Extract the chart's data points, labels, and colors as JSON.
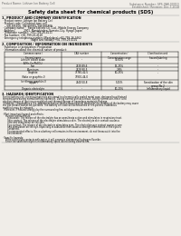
{
  "bg_color": "#f0ede8",
  "header_left": "Product Name: Lithium Ion Battery Cell",
  "header_right_line1": "Substance Number: SPS-0AR-00010",
  "header_right_line2": "Established / Revision: Dec.7,2018",
  "title": "Safety data sheet for chemical products (SDS)",
  "section1_title": "1. PRODUCT AND COMPANY IDENTIFICATION",
  "section1_lines": [
    "· Product name: Lithium Ion Battery Cell",
    "· Product code: Cylindrical-type cell",
    "     SW-88580U, SW-88580L, SW-88580A",
    "· Company name:    Sanyo Electric Co., Ltd., Mobile Energy Company",
    "· Address:           2001, Kamishinden, Sumoto-City, Hyogo, Japan",
    "· Telephone number:  +81-799-26-4111",
    "· Fax number: +81-799-26-4120",
    "· Emergency telephone number (Weekdays) +81-799-26-3662",
    "                                   (Night and holiday) +81-799-26-4101"
  ],
  "section2_title": "2. COMPOSITION / INFORMATION ON INGREDIENTS",
  "section2_sub": "· Substance or preparation: Preparation",
  "section2_table_header": "· Information about the chemical nature of product:",
  "section3_title": "3. HAZARDS IDENTIFICATION",
  "section3_text": [
    "For the battery cell, chemical materials are stored in a hermetically sealed metal case, designed to withstand",
    "temperatures during normal battery operation. During normal use, as a result, during normal use, there is no",
    "physical danger of ignition or explosion and thermal danger of hazardous materials leakage.",
    "  However, if exposed to a fire, added mechanical shocks, decomposed, when electric shorting of the battery may cause",
    "the gas release cannot be operated. The battery cell case will be breached of fire-pollens. Hazardous",
    "materials may be released.",
    "  Moreover, if heated strongly by the surrounding fire, solid gas may be emitted.",
    "",
    "· Most important hazard and effects:",
    "    Human health effects:",
    "       Inhalation: The release of the electrolyte has an anesthesia action and stimulates in respiratory tract.",
    "       Skin contact: The release of the electrolyte stimulates a skin. The electrolyte skin contact causes a",
    "       sore and stimulation on the skin.",
    "       Eye contact: The release of the electrolyte stimulates eyes. The electrolyte eye contact causes a sore",
    "       and stimulation on the eye. Especially, a substance that causes a strong inflammation of the eyes is",
    "       contained.",
    "       Environmental effects: Since a battery cell remains in the environment, do not throw out it into the",
    "       environment.",
    "",
    "· Specific hazards:",
    "    If the electrolyte contacts with water, it will generate detrimental hydrogen fluoride.",
    "    Since the said electrolyte is inflammatory liquid, do not bring close to fire."
  ]
}
